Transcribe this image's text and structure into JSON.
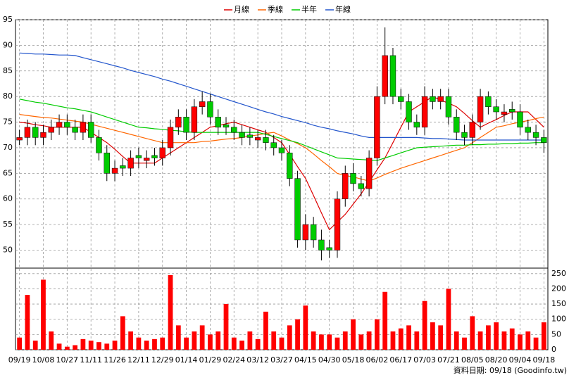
{
  "chart_data": {
    "type": "candlestick",
    "categories": [
      "09/19",
      null,
      null,
      "10/08",
      null,
      null,
      "10/27",
      null,
      null,
      "11/11",
      null,
      null,
      "11/26",
      null,
      null,
      "12/11",
      null,
      null,
      "12/29",
      null,
      null,
      "01/14",
      null,
      null,
      "01/29",
      null,
      null,
      "02/24",
      null,
      null,
      "03/12",
      null,
      null,
      "03/27",
      null,
      null,
      "04/15",
      null,
      null,
      "04/30",
      null,
      null,
      "05/18",
      null,
      null,
      "06/02",
      null,
      null,
      "06/17",
      null,
      null,
      "07/03",
      null,
      null,
      "07/21",
      null,
      null,
      "08/05",
      null,
      null,
      "08/20",
      null,
      null,
      "09/04",
      null,
      null,
      "09/18"
    ],
    "open": [
      71.5,
      72,
      74,
      72,
      73,
      74,
      75,
      74,
      73,
      75,
      72,
      69,
      65,
      66.5,
      66,
      68.5,
      67.5,
      68.5,
      68,
      70,
      74,
      76,
      73,
      78,
      79,
      76,
      74.5,
      74,
      73,
      72.5,
      71.5,
      72,
      71,
      70,
      69,
      64,
      52,
      55,
      52,
      50.5,
      50,
      60,
      65,
      63,
      62,
      68,
      80,
      88,
      80,
      79,
      75,
      74,
      80,
      79,
      80,
      76,
      73,
      72,
      75,
      80,
      78,
      76.5,
      77.5,
      77,
      74,
      73,
      72
    ],
    "high": [
      73.5,
      75.5,
      75,
      74.5,
      75.5,
      76.5,
      76.5,
      75.5,
      76.5,
      76.5,
      73.5,
      70.5,
      67.5,
      68,
      69.5,
      70,
      69.5,
      70,
      71.5,
      75.5,
      77.5,
      77.5,
      79.5,
      81,
      80.5,
      77.5,
      76,
      75.5,
      74.5,
      74,
      73.5,
      73.5,
      72.5,
      71.5,
      70.5,
      65.5,
      57,
      56.5,
      54,
      52,
      61.5,
      66.5,
      67,
      64.5,
      69.5,
      82,
      93.5,
      89.5,
      81.5,
      80.5,
      76.5,
      82,
      81.5,
      81.5,
      81.5,
      77.5,
      74.5,
      76.5,
      81.5,
      81,
      79.5,
      78.5,
      79,
      78.5,
      75.5,
      74.5,
      73.5
    ],
    "low": [
      70.5,
      70.5,
      70.5,
      70.5,
      71.5,
      72.5,
      72.5,
      71.5,
      71.5,
      71,
      67.5,
      63.5,
      63.5,
      64.5,
      64.5,
      66,
      66,
      66.5,
      66.5,
      68.5,
      72.5,
      71.5,
      71.5,
      76.5,
      74.5,
      72.5,
      72.5,
      71.5,
      70.5,
      70.5,
      70,
      69.5,
      68.5,
      67.5,
      62.5,
      50.5,
      50,
      50.5,
      48,
      48.5,
      48.5,
      58.5,
      61.5,
      60.5,
      60.5,
      66.5,
      78.5,
      78.5,
      77.5,
      73.5,
      72.5,
      72.5,
      77.5,
      77.5,
      74.5,
      71.5,
      70.5,
      70.5,
      73.5,
      76.5,
      75.5,
      75,
      75.5,
      72.5,
      71.5,
      70.5,
      69
    ],
    "close": [
      72,
      74,
      72,
      73,
      74,
      75,
      74,
      73,
      75,
      72,
      69,
      65,
      66,
      66,
      68,
      68,
      68,
      68,
      70,
      74,
      76,
      73,
      78,
      79,
      76,
      74,
      74,
      73,
      72,
      72,
      72,
      71,
      70,
      69,
      64,
      52,
      55,
      52,
      50,
      50,
      60,
      65,
      63,
      62,
      68,
      80,
      88,
      80,
      79,
      75,
      74,
      80,
      79,
      80,
      76,
      73,
      72,
      75,
      80,
      78,
      77,
      77,
      77,
      74,
      73,
      72,
      71
    ],
    "up_color": "#ff0000",
    "down_color": "#00cc00",
    "series": [
      {
        "name": "月線",
        "color": "#dd0000",
        "values": [
          75,
          74.8,
          74.5,
          74.3,
          74,
          74,
          74,
          74,
          74,
          73,
          72,
          71,
          69.7,
          68.3,
          67,
          67,
          67,
          67,
          68,
          69,
          70,
          71,
          72,
          73,
          74,
          74.3,
          74.7,
          75,
          74.5,
          74,
          73.5,
          73,
          72,
          71,
          68.7,
          66.3,
          64,
          60.7,
          57.3,
          54,
          55.5,
          57,
          59,
          61,
          63.3,
          65.7,
          68,
          71,
          74,
          77,
          78,
          79,
          80,
          79.3,
          78.7,
          78,
          76.7,
          75.3,
          74,
          74.8,
          75.5,
          76.3,
          77,
          77,
          77,
          75.5,
          74
        ]
      },
      {
        "name": "季線",
        "color": "#ff6600",
        "values": [
          76.5,
          76.3,
          76.1,
          75.9,
          75.8,
          75.6,
          75.4,
          75.2,
          75,
          74.6,
          74.2,
          73.8,
          73.4,
          73,
          72.6,
          72.2,
          71.8,
          71.4,
          71,
          71,
          71,
          71,
          71,
          71.2,
          71.3,
          71.5,
          71.7,
          71.8,
          72,
          72.3,
          72.5,
          72.8,
          73,
          72.3,
          71.5,
          70.8,
          70,
          68.8,
          67.5,
          66.3,
          65,
          64.6,
          64.3,
          63.9,
          63.5,
          64.1,
          64.8,
          65.4,
          66,
          66.5,
          67,
          67.5,
          68,
          68.5,
          69,
          69.5,
          70,
          71,
          72,
          73,
          74,
          74.3,
          74.7,
          75,
          75.3,
          75.7,
          76
        ]
      },
      {
        "name": "半年",
        "color": "#00cc00",
        "values": [
          79.5,
          79.2,
          78.9,
          78.7,
          78.4,
          78.1,
          77.8,
          77.6,
          77.3,
          77,
          76.5,
          76,
          75.5,
          75,
          74.5,
          74,
          73.9,
          73.7,
          73.6,
          73.4,
          73.3,
          73.1,
          73,
          73,
          73,
          73,
          73,
          73,
          73,
          73,
          73,
          72.6,
          72.2,
          71.8,
          71.4,
          71,
          70.4,
          69.8,
          69.2,
          68.6,
          68,
          67.9,
          67.8,
          67.7,
          67.6,
          67.5,
          68,
          68.5,
          69,
          69.5,
          70,
          70.1,
          70.2,
          70.3,
          70.4,
          70.5,
          70.5,
          70.6,
          70.6,
          70.7,
          70.7,
          70.8,
          70.8,
          70.9,
          70.9,
          71,
          71
        ]
      },
      {
        "name": "年線",
        "color": "#2255cc",
        "values": [
          88.5,
          88.4,
          88.3,
          88.3,
          88.2,
          88.1,
          88.1,
          88,
          87.6,
          87.2,
          86.8,
          86.4,
          86,
          85.6,
          85.1,
          84.7,
          84.3,
          83.9,
          83.4,
          83,
          82.5,
          82,
          81.5,
          81,
          80.5,
          80,
          79.5,
          79,
          78.5,
          78,
          77.5,
          77,
          76.6,
          76.1,
          75.7,
          75.3,
          74.9,
          74.4,
          74,
          73.7,
          73.3,
          73,
          72.7,
          72.3,
          72,
          72,
          72,
          72,
          72,
          72,
          72,
          71.9,
          71.8,
          71.8,
          71.7,
          71.6,
          71.5,
          71.5,
          71.5,
          71.5,
          71.5,
          71.5,
          71.5,
          71.5,
          71.5,
          71.5,
          71.5
        ]
      }
    ],
    "ylim": [
      46.5,
      95
    ],
    "yticks": [
      50,
      55,
      60,
      65,
      70,
      75,
      80,
      85,
      90,
      95
    ],
    "grid": true,
    "legend": "top",
    "volume": {
      "color": "#ff0000",
      "values": [
        40,
        180,
        30,
        230,
        60,
        20,
        10,
        15,
        35,
        30,
        25,
        20,
        30,
        110,
        60,
        40,
        30,
        35,
        40,
        245,
        80,
        40,
        60,
        80,
        50,
        60,
        150,
        40,
        30,
        60,
        35,
        125,
        60,
        40,
        80,
        100,
        145,
        60,
        50,
        50,
        40,
        60,
        100,
        50,
        60,
        100,
        190,
        60,
        70,
        80,
        60,
        160,
        90,
        80,
        200,
        60,
        40,
        110,
        60,
        80,
        90,
        60,
        70,
        50,
        60,
        40,
        90
      ],
      "ylim": [
        0,
        268
      ],
      "yticks": [
        0,
        50,
        100,
        150,
        200,
        250
      ]
    },
    "footer": "資料日期: 09/18  (Goodinfo.tw)"
  }
}
